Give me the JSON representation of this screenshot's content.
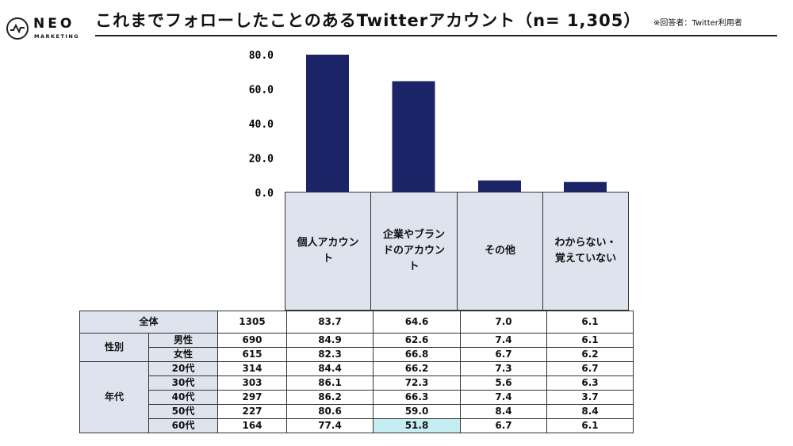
{
  "brand": {
    "name": "NEO",
    "sub": "MARKETING"
  },
  "title": "これまでフォローしたことのあるTwitterアカウント（n= 1,305）",
  "note": "※回答者：Twitter利用者",
  "chart_data": {
    "type": "bar",
    "categories": [
      "個人アカウント",
      "企業やブランドのアカウント",
      "その他",
      "わからない・覚えていない"
    ],
    "values": [
      83.7,
      64.6,
      7.0,
      6.1
    ],
    "y_ticks": [
      "80.0",
      "60.0",
      "40.0",
      "20.0",
      "0.0"
    ],
    "ylim": [
      0,
      80
    ],
    "grid": false,
    "bar_color": "#1a2466"
  },
  "category_labels": [
    [
      "個人アカウン",
      "ト"
    ],
    [
      "企業やブラン",
      "ドのアカウン",
      "ト"
    ],
    [
      "その他"
    ],
    [
      "わからない・",
      "覚えていない"
    ]
  ],
  "table": {
    "total": {
      "label": "全体",
      "n": "1305",
      "values": [
        "83.7",
        "64.6",
        "7.0",
        "6.1"
      ]
    },
    "groups": [
      {
        "label": "性別",
        "rows": [
          {
            "label": "男性",
            "n": "690",
            "values": [
              "84.9",
              "62.6",
              "7.4",
              "6.1"
            ]
          },
          {
            "label": "女性",
            "n": "615",
            "values": [
              "82.3",
              "66.8",
              "6.7",
              "6.2"
            ]
          }
        ]
      },
      {
        "label": "年代",
        "rows": [
          {
            "label": "20代",
            "n": "314",
            "values": [
              "84.4",
              "66.2",
              "7.3",
              "6.7"
            ]
          },
          {
            "label": "30代",
            "n": "303",
            "values": [
              "86.1",
              "72.3",
              "5.6",
              "6.3"
            ]
          },
          {
            "label": "40代",
            "n": "297",
            "values": [
              "86.2",
              "66.3",
              "7.4",
              "3.7"
            ]
          },
          {
            "label": "50代",
            "n": "227",
            "values": [
              "80.6",
              "59.0",
              "8.4",
              "8.4"
            ]
          },
          {
            "label": "60代",
            "n": "164",
            "values": [
              "77.4",
              "51.8",
              "6.7",
              "6.1"
            ]
          }
        ]
      }
    ],
    "highlight_color": "#c6eef2"
  }
}
